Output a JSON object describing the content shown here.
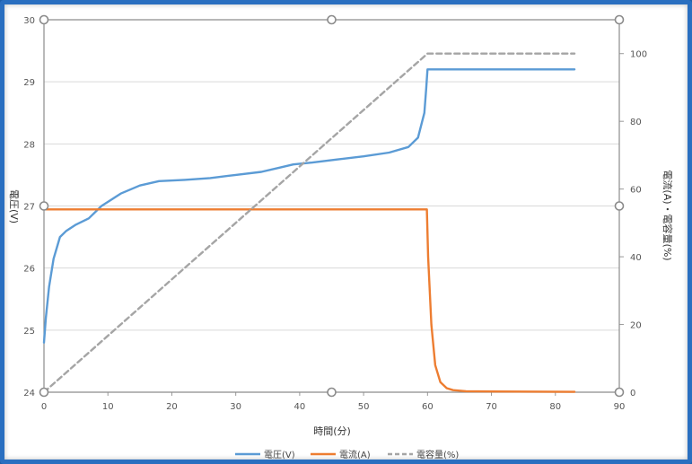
{
  "chart_data": {
    "type": "line",
    "xlabel": "時間(分)",
    "ylabel_left": "電圧(V)",
    "ylabel_right": "電流(A)・電容量(%)",
    "x_ticks": [
      "0",
      "10",
      "20",
      "30",
      "40",
      "50",
      "60",
      "70",
      "80",
      "90"
    ],
    "y_left_ticks": [
      "24",
      "25",
      "26",
      "27",
      "28",
      "29",
      "30"
    ],
    "y_right_ticks": [
      "0",
      "20",
      "40",
      "60",
      "80",
      "100"
    ],
    "xlim": [
      0,
      90
    ],
    "ylim_left": [
      24,
      30
    ],
    "ylim_right": [
      0,
      110
    ],
    "grid": true,
    "legend_position": "bottom",
    "series": [
      {
        "name": "電圧(V)",
        "axis": "left",
        "color": "#5b9bd5",
        "x": [
          0,
          0.3,
          0.8,
          1.5,
          2.5,
          3.5,
          5,
          7,
          9,
          12,
          15,
          18,
          22,
          26,
          30,
          34,
          37,
          39,
          42,
          46,
          50,
          54,
          57,
          58.5,
          59.5,
          59.8,
          60,
          60.2,
          70,
          83
        ],
        "y": [
          24.8,
          25.2,
          25.7,
          26.15,
          26.5,
          26.6,
          26.7,
          26.8,
          27.0,
          27.2,
          27.33,
          27.4,
          27.42,
          27.45,
          27.5,
          27.55,
          27.62,
          27.67,
          27.7,
          27.75,
          27.8,
          27.86,
          27.95,
          28.1,
          28.5,
          28.9,
          29.2,
          29.2,
          29.2,
          29.2
        ]
      },
      {
        "name": "電流(A)",
        "axis": "right",
        "color": "#ed7d31",
        "x": [
          0,
          10,
          20,
          30,
          40,
          50,
          59.9,
          60.1,
          60.6,
          61.2,
          62,
          63,
          64,
          66,
          70,
          83
        ],
        "y": [
          54,
          54,
          54,
          54,
          54,
          54,
          54,
          40,
          20,
          8,
          3,
          1.2,
          0.6,
          0.3,
          0.2,
          0.1
        ]
      },
      {
        "name": "電容量(%)",
        "axis": "right",
        "color": "#a5a5a5",
        "dashed": true,
        "x": [
          0,
          60,
          83
        ],
        "y": [
          0,
          100,
          100
        ]
      }
    ]
  }
}
